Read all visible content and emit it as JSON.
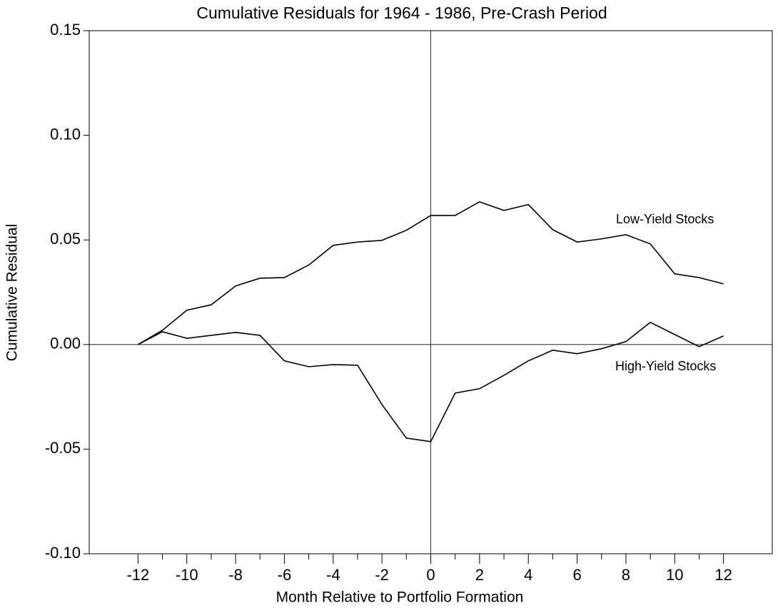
{
  "chart_data": {
    "type": "line",
    "title": "Cumulative Residuals for 1964 - 1986, Pre-Crash Period",
    "x_label": "Month Relative to Portfolio Formation",
    "y_label": "Cumulative Residual",
    "x": [
      -12,
      -11,
      -10,
      -9,
      -8,
      -7,
      -6,
      -5,
      -4,
      -3,
      -2,
      -1,
      0,
      1,
      2,
      3,
      4,
      5,
      6,
      7,
      8,
      9,
      10,
      11,
      12
    ],
    "series": [
      {
        "name": "Low-Yield Stocks",
        "color": "#000000",
        "values": [
          0,
          0.0068,
          0.0164,
          0.019,
          0.028,
          0.0317,
          0.032,
          0.038,
          0.0474,
          0.049,
          0.0498,
          0.0546,
          0.0617,
          0.0617,
          0.0682,
          0.0641,
          0.0669,
          0.0549,
          0.049,
          0.0505,
          0.0525,
          0.0481,
          0.0338,
          0.032,
          0.029
        ]
      },
      {
        "name": "High-Yield Stocks",
        "color": "#000000",
        "values": [
          0,
          0.0061,
          0.003,
          0.0044,
          0.0058,
          0.0044,
          -0.0078,
          -0.0106,
          -0.0096,
          -0.0099,
          -0.0287,
          -0.0447,
          -0.0464,
          -0.0232,
          -0.0211,
          -0.0147,
          -0.0078,
          -0.0027,
          -0.0044,
          -0.002,
          0.0014,
          0.0106,
          0.0048,
          -0.001,
          0.0041
        ]
      }
    ],
    "xlim": [
      -14,
      14
    ],
    "xticks": [
      -12,
      -10,
      -8,
      -6,
      -4,
      -2,
      0,
      2,
      4,
      6,
      8,
      10,
      12
    ],
    "ylim": [
      -0.1,
      0.15
    ],
    "yticks": [
      {
        "value": -0.1,
        "label": "-0.10"
      },
      -0.05,
      {
        "value": 0,
        "label": "0.00"
      },
      0.05,
      {
        "value": 0.1,
        "label": "0.10"
      },
      0.15
    ],
    "zero_lines": true
  }
}
